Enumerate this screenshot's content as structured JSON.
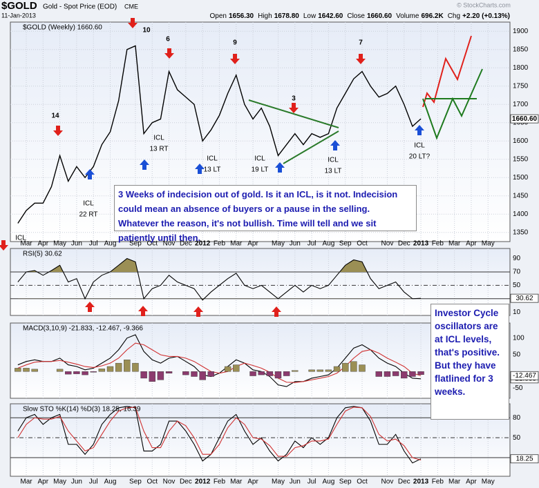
{
  "header": {
    "symbol": "$GOLD",
    "name": "Gold - Spot Price (EOD)",
    "exchange": "CME",
    "date": "11-Jan-2013",
    "quote": [
      {
        "label": "Open",
        "value": "1656.30"
      },
      {
        "label": "High",
        "value": "1678.80"
      },
      {
        "label": "Low",
        "value": "1642.60"
      },
      {
        "label": "Close",
        "value": "1660.60"
      },
      {
        "label": "Volume",
        "value": "696.2K"
      },
      {
        "label": "Chg",
        "value": "+2.20 (+0.13%)"
      }
    ],
    "watermark": "© StockCharts.com"
  },
  "chart_data": [
    {
      "type": "line",
      "title": "$GOLD (Weekly) 1660.60",
      "categories": [
        null,
        "Mar",
        null,
        "Apr",
        null,
        "May",
        null,
        "Jun",
        null,
        "Jul",
        null,
        "Aug",
        null,
        null,
        "Sep",
        null,
        "Oct",
        null,
        "Nov",
        null,
        "Dec",
        null,
        "2012",
        null,
        "Feb",
        null,
        "Mar",
        null,
        "Apr",
        null,
        null,
        "May",
        null,
        "Jun",
        null,
        "Jul",
        null,
        "Aug",
        null,
        "Sep",
        null,
        "Oct",
        null,
        null,
        "Nov",
        null,
        "Dec",
        null,
        "2013",
        null,
        "Feb",
        null,
        "Mar",
        null,
        "Apr",
        null,
        "May",
        null
      ],
      "series": [
        {
          "name": "$GOLD",
          "color": "#000000",
          "value_box": true,
          "values": [
            1375,
            1410,
            1430,
            1430,
            1475,
            1560,
            1490,
            1530,
            1500,
            1530,
            1590,
            1625,
            1710,
            1850,
            1860,
            1620,
            1650,
            1660,
            1790,
            1740,
            1720,
            1700,
            1600,
            1630,
            1670,
            1730,
            1780,
            1700,
            1660,
            1690,
            1640,
            1560,
            1590,
            1620,
            1590,
            1620,
            1610,
            1620,
            1690,
            1730,
            1770,
            1790,
            1750,
            1720,
            1730,
            1750,
            1700,
            1640,
            1660.6,
            null,
            null,
            null,
            null,
            null,
            null,
            null,
            null,
            null
          ],
          "value_labels": [
            null,
            null,
            null,
            null,
            null,
            null,
            null,
            null,
            null,
            null,
            null,
            null,
            null,
            null,
            null,
            null,
            null,
            null,
            null,
            null,
            null,
            null,
            null,
            null,
            null,
            null,
            null,
            null,
            null,
            null,
            null,
            null,
            null,
            null,
            null,
            null,
            null,
            null,
            null,
            null,
            null,
            null,
            null,
            null,
            null,
            null,
            null,
            null,
            "1660.60",
            null,
            null,
            null,
            null,
            null,
            null,
            null,
            null,
            null
          ]
        }
      ],
      "ylim": [
        1325,
        1925
      ],
      "yticks": [
        1350,
        1400,
        1450,
        1500,
        1550,
        1600,
        1650,
        1700,
        1750,
        1800,
        1850,
        1900
      ],
      "grid": true,
      "annotations": [
        {
          "text": [
            "14"
          ]
        },
        {
          "text": [
            "10"
          ]
        },
        {
          "text": [
            "6"
          ]
        },
        {
          "text": [
            "9"
          ]
        },
        {
          "text": [
            "3"
          ]
        },
        {
          "text": [
            "7"
          ]
        },
        {
          "text": [
            "ICL",
            "22 RT"
          ]
        },
        {
          "text": [
            "ICL",
            "13 RT"
          ]
        },
        {
          "text": [
            "ICL",
            "13 LT"
          ]
        },
        {
          "text": [
            "ICL",
            "19 LT"
          ]
        },
        {
          "text": [
            "ICL",
            "13 LT"
          ]
        },
        {
          "text": [
            "ICL",
            "20 LT?"
          ]
        },
        {
          "text": [
            "ICL"
          ]
        }
      ]
    },
    {
      "type": "line",
      "title": "RSI(5) 30.62",
      "series": [
        {
          "name": "RSI(5)",
          "color": "#000000",
          "value_box": true,
          "values": [
            55,
            70,
            72,
            65,
            72,
            80,
            55,
            60,
            30,
            55,
            65,
            70,
            80,
            90,
            85,
            30,
            45,
            50,
            65,
            55,
            50,
            45,
            28,
            40,
            50,
            60,
            68,
            50,
            45,
            50,
            40,
            30,
            40,
            50,
            40,
            50,
            45,
            50,
            65,
            80,
            88,
            85,
            60,
            45,
            50,
            55,
            40,
            30,
            30.62,
            null,
            null,
            null,
            null,
            null,
            null,
            null,
            null,
            null
          ]
        }
      ],
      "ylim": [
        5,
        105
      ],
      "yticks": [
        10,
        30,
        50,
        70,
        90
      ],
      "reference_lines": [
        30,
        50,
        70
      ],
      "fill_color": "#9b8f55"
    },
    {
      "type": "line",
      "title": "MACD(3,10,9) -21.833, -12.467, -9.366",
      "series": [
        {
          "name": "MACD",
          "color": "#000000",
          "value_box": true,
          "values": [
            20,
            30,
            35,
            30,
            30,
            40,
            20,
            15,
            5,
            10,
            25,
            40,
            65,
            100,
            110,
            60,
            35,
            25,
            40,
            45,
            30,
            15,
            -10,
            -15,
            -5,
            15,
            35,
            25,
            5,
            0,
            -15,
            -40,
            -45,
            -30,
            -30,
            -20,
            -15,
            -10,
            10,
            40,
            70,
            80,
            65,
            40,
            25,
            15,
            -5,
            -20,
            -21.833,
            null,
            null,
            null,
            null,
            null,
            null,
            null,
            null,
            null
          ]
        },
        {
          "name": "Signal",
          "color": "#d03030",
          "value_box": true,
          "values": [
            10,
            20,
            28,
            30,
            30,
            33,
            28,
            22,
            15,
            12,
            17,
            25,
            40,
            65,
            85,
            80,
            65,
            50,
            45,
            45,
            40,
            30,
            15,
            0,
            -5,
            0,
            15,
            25,
            18,
            10,
            -2,
            -20,
            -32,
            -33,
            -30,
            -25,
            -20,
            -15,
            -5,
            15,
            40,
            60,
            65,
            55,
            40,
            28,
            15,
            -5,
            -12.467,
            null,
            null,
            null,
            null,
            null,
            null,
            null,
            null,
            null
          ]
        },
        {
          "name": "Histogram",
          "type": "bar",
          "color": "#9b8f55",
          "negative_color": "#8c3b6e",
          "values": [
            10,
            10,
            7,
            0,
            0,
            7,
            -8,
            -7,
            -10,
            -2,
            8,
            15,
            25,
            35,
            25,
            -20,
            -30,
            -25,
            -5,
            0,
            -10,
            -15,
            -25,
            -15,
            0,
            15,
            20,
            0,
            -13,
            -10,
            -13,
            -20,
            -13,
            3,
            0,
            5,
            5,
            5,
            15,
            25,
            30,
            20,
            0,
            -15,
            -15,
            -13,
            -20,
            -15,
            -9.366,
            null,
            null,
            null,
            null,
            null,
            null,
            null,
            null,
            null
          ]
        }
      ],
      "ylim": [
        -80,
        145
      ],
      "yticks": [
        -50,
        50,
        100
      ]
    },
    {
      "type": "line",
      "title": "Slow STO %K(14) %D(3) 18.25, 16.39",
      "series": [
        {
          "name": "%K(14)",
          "color": "#000000",
          "value_box": true,
          "values": [
            60,
            80,
            85,
            70,
            80,
            85,
            40,
            40,
            25,
            40,
            70,
            85,
            95,
            97,
            95,
            30,
            30,
            40,
            75,
            75,
            60,
            40,
            15,
            25,
            50,
            75,
            85,
            60,
            40,
            50,
            30,
            15,
            25,
            45,
            35,
            50,
            40,
            50,
            80,
            95,
            97,
            95,
            75,
            40,
            40,
            55,
            30,
            12,
            18.25,
            null,
            null,
            null,
            null,
            null,
            null,
            null,
            null,
            null
          ]
        },
        {
          "name": "%D(3)",
          "color": "#d03030",
          "values": [
            50,
            70,
            80,
            78,
            78,
            82,
            60,
            45,
            30,
            35,
            55,
            75,
            90,
            95,
            96,
            60,
            35,
            35,
            60,
            75,
            68,
            50,
            25,
            25,
            40,
            65,
            80,
            70,
            50,
            48,
            38,
            22,
            22,
            35,
            38,
            45,
            45,
            48,
            70,
            90,
            96,
            95,
            82,
            55,
            45,
            48,
            38,
            20,
            16.39,
            null,
            null,
            null,
            null,
            null,
            null,
            null,
            null,
            null
          ]
        }
      ],
      "ylim": [
        -8,
        101
      ],
      "yticks": [
        20,
        50,
        80
      ],
      "reference_lines": [
        20,
        50,
        80
      ]
    }
  ],
  "notes": [
    "3 Weeks of indecision out of gold.  Is it an ICL, is it not.  Indecision could mean an absence of buyers or a pause in the selling.  Whatever the reason, it's not bullish.  Time will tell and we sit patiently until then.",
    "Investor Cycle oscillators are at ICL levels, that's positive.  But they have flatlined for 3 weeks."
  ]
}
